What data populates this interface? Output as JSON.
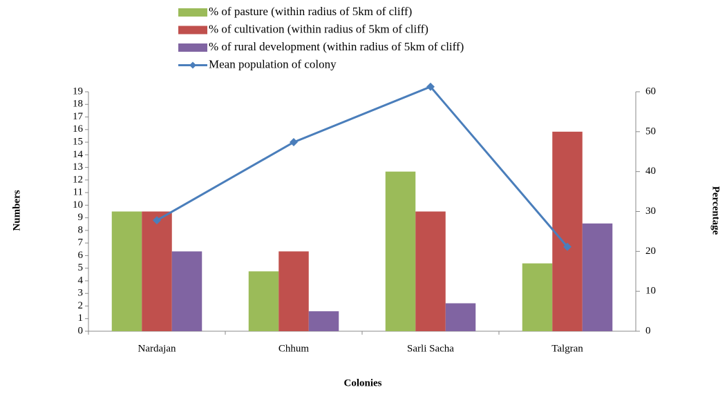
{
  "chart_data": {
    "type": "bar_line",
    "categories": [
      "Nardajan",
      "Chhum",
      "Sarli Sacha",
      "Talgran"
    ],
    "series": [
      {
        "name": "% of pasture (within radius of 5km of cliff)",
        "type": "bar",
        "axis": "y2",
        "color": "#9bbb59",
        "values": [
          30,
          15,
          40,
          17
        ]
      },
      {
        "name": "% of cultivation  (within radius of 5km of cliff)",
        "type": "bar",
        "axis": "y2",
        "color": "#c0504d",
        "values": [
          30,
          20,
          30,
          50
        ]
      },
      {
        "name": "% of rural development  (within radius of 5km of cliff)",
        "type": "bar",
        "axis": "y2",
        "color": "#8064a2",
        "values": [
          20,
          5,
          7,
          27
        ]
      },
      {
        "name": "Mean population  of colony",
        "type": "line",
        "axis": "y",
        "color": "#4a7ebb",
        "values": [
          8.8,
          15.0,
          19.4,
          6.7
        ]
      }
    ],
    "xlabel": "Colonies",
    "ylabel": "Numbers",
    "y2label": "Percentage",
    "ylim": [
      0,
      19
    ],
    "yticks": [
      0,
      1,
      2,
      3,
      4,
      5,
      6,
      7,
      8,
      9,
      10,
      11,
      12,
      13,
      14,
      15,
      16,
      17,
      18,
      19
    ],
    "y2lim": [
      0,
      60
    ],
    "y2ticks": [
      0,
      10,
      20,
      30,
      40,
      50,
      60
    ],
    "grid": false,
    "legend": "top"
  }
}
